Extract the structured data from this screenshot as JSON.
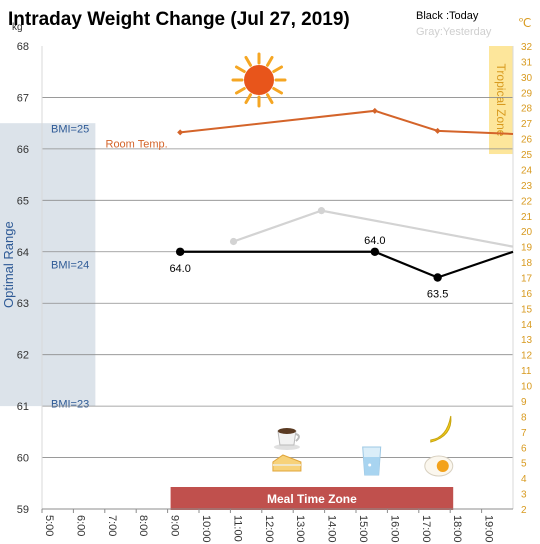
{
  "header": {
    "title": "Intraday Weight Change (Jul 27, 2019)",
    "legend_today": "Black :Today",
    "legend_yesterday": "Gray:Yesterday"
  },
  "colors": {
    "today": "#000000",
    "yesterday": "#d3d3d3",
    "room_temp": "#d4642a",
    "optimal_band": "#dce3ea",
    "optimal_text": "#2e5a96",
    "tropical_band": "#fde69b",
    "tropical_text": "#d89a1f",
    "meal_zone": "#c0504d",
    "grid": "#7f7f7f"
  },
  "chart_data": {
    "type": "line",
    "title": "Intraday Weight Change (Jul 27, 2019)",
    "x_ticks": [
      "5:00",
      "6:00",
      "7:00",
      "8:00",
      "9:00",
      "10:00",
      "11:00",
      "12:00",
      "13:00",
      "14:00",
      "15:00",
      "16:00",
      "17:00",
      "18:00",
      "19:00"
    ],
    "xlim": [
      5,
      20
    ],
    "left_axis": {
      "unit": "kg",
      "ylim": [
        59,
        68
      ],
      "ticks": [
        59,
        60,
        61,
        62,
        63,
        64,
        65,
        66,
        67,
        68
      ]
    },
    "right_axis": {
      "unit": "℃",
      "ylim": [
        2,
        32
      ],
      "ticks": [
        2,
        3,
        4,
        5,
        6,
        7,
        8,
        9,
        10,
        11,
        12,
        13,
        14,
        15,
        16,
        17,
        18,
        19,
        20,
        21,
        22,
        23,
        24,
        25,
        26,
        27,
        28,
        29,
        30,
        31,
        32
      ]
    },
    "series": [
      {
        "name": "Today",
        "axis": "left",
        "x": [
          9.4,
          15.6,
          17.6,
          20
        ],
        "y": [
          64.0,
          64.0,
          63.5,
          64.0
        ],
        "point_labels": [
          "64.0",
          "64.0",
          "63.5",
          ""
        ]
      },
      {
        "name": "Gray:Yesterday",
        "axis": "left",
        "x": [
          11.1,
          13.9,
          20
        ],
        "y": [
          64.2,
          64.8,
          64.1
        ]
      },
      {
        "name": "Room Temp.",
        "axis": "right",
        "x": [
          9.4,
          15.6,
          17.6,
          20
        ],
        "y": [
          26.4,
          27.8,
          26.5,
          26.3
        ]
      }
    ],
    "bands": {
      "optimal_range": {
        "label": "Optimal Range",
        "y_from": 61,
        "y_to": 66.5,
        "x_from": 5,
        "x_to": 6.7
      },
      "tropical_zone": {
        "label": "Tropical Zone",
        "temp_from": 25,
        "temp_to": 32
      },
      "meal_time_zone": {
        "label": "Meal Time Zone",
        "x_from": 9,
        "x_to": 18
      }
    },
    "annotations": [
      {
        "text": "BMI=25",
        "y": 66.4
      },
      {
        "text": "BMI=24",
        "y": 63.75
      },
      {
        "text": "BMI=23",
        "y": 61.05
      },
      {
        "text": "Room Temp.",
        "x": 7.5,
        "y": 66.1
      }
    ],
    "meal_icons": [
      {
        "name": "coffee-icon",
        "x": 12.8
      },
      {
        "name": "cake-icon",
        "x": 12.8
      },
      {
        "name": "water-glass-icon",
        "x": 15.5
      },
      {
        "name": "banana-icon",
        "x": 17.7
      },
      {
        "name": "egg-icon",
        "x": 17.7
      }
    ],
    "weather_icon": "sun-icon",
    "grid": true,
    "legend_position": "top-right"
  }
}
